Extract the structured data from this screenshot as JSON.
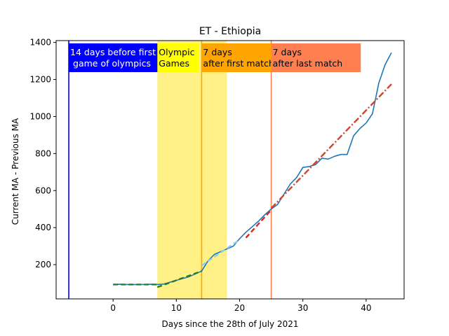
{
  "chart_data": {
    "type": "line",
    "title": "ET - Ethiopia",
    "xlabel": "Days since the 28th of July 2021",
    "ylabel": "Current MA - Previous MA",
    "xlim": [
      -9,
      46
    ],
    "ylim": [
      15,
      1410
    ],
    "xticks": [
      0,
      10,
      20,
      30,
      40
    ],
    "yticks": [
      200,
      400,
      600,
      800,
      1000,
      1200,
      1400
    ],
    "grid": false,
    "series": [
      {
        "color": "#1f77b4",
        "style": "solid",
        "x": [
          0,
          1,
          2,
          3,
          4,
          5,
          6,
          7,
          8,
          9,
          10,
          11,
          12,
          13,
          14,
          15,
          16,
          17,
          18,
          19,
          20,
          21,
          22,
          23,
          24,
          25,
          26,
          27,
          28,
          29,
          30,
          31,
          32,
          33,
          34,
          35,
          36,
          37,
          38,
          39,
          40,
          41,
          42,
          43,
          44
        ],
        "y": [
          92,
          94,
          93,
          92,
          93,
          93,
          94,
          93,
          95,
          105,
          115,
          125,
          135,
          150,
          165,
          220,
          255,
          270,
          285,
          300,
          340,
          375,
          405,
          435,
          470,
          500,
          525,
          580,
          635,
          670,
          725,
          730,
          740,
          775,
          770,
          785,
          795,
          795,
          895,
          935,
          965,
          1015,
          1180,
          1280,
          1345
        ]
      },
      {
        "color": "#2a7a2a",
        "style": "dashed",
        "x": [
          0,
          7
        ],
        "y": [
          93,
          93
        ]
      },
      {
        "color": "#2a7a2a",
        "style": "dashed",
        "x": [
          7,
          14
        ],
        "y": [
          78,
          165
        ]
      },
      {
        "color": "#8fd0e8",
        "style": "dashed",
        "x": [
          14,
          20
        ],
        "y": [
          195,
          335
        ]
      },
      {
        "color": "#d62728",
        "style": "dashed",
        "x": [
          21,
          25
        ],
        "y": [
          345,
          495
        ]
      },
      {
        "color": "#d0452a",
        "style": "dashdot",
        "x": [
          25,
          44
        ],
        "y": [
          505,
          1175
        ]
      }
    ],
    "shaded_regions": [
      {
        "x0": 7,
        "x1": 18,
        "color": "#fff080"
      }
    ],
    "vlines": [
      {
        "x": -7,
        "color": "#0000ff"
      },
      {
        "x": 14,
        "color": "#ffa500"
      },
      {
        "x": 25,
        "color": "#ff7f50"
      }
    ],
    "annotations": [
      {
        "x": -7,
        "line1": "14 days before first",
        "line2": "game of olympics",
        "bg": "#0000ff",
        "fg": "#ffffff"
      },
      {
        "x": 7,
        "line1": "Olympic",
        "line2": "Games",
        "bg": "#ffff00",
        "fg": "#000000"
      },
      {
        "x": 14,
        "line1": "7 days",
        "line2": "after first match",
        "bg": "#ffa500",
        "fg": "#000000"
      },
      {
        "x": 25,
        "line1": "7 days",
        "line2": "after last match",
        "bg": "#ff7f50",
        "fg": "#000000"
      }
    ]
  }
}
